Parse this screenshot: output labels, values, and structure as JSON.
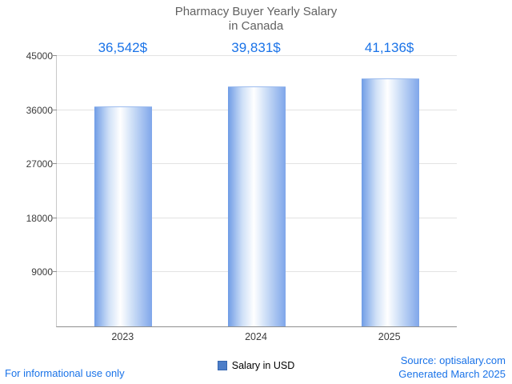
{
  "title": {
    "line1": "Pharmacy Buyer Yearly Salary",
    "line2": "in Canada"
  },
  "chart_data": {
    "type": "bar",
    "title": "Pharmacy Buyer Yearly Salary in Canada",
    "categories": [
      "2023",
      "2024",
      "2025"
    ],
    "series": [
      {
        "name": "Salary in USD",
        "values": [
          36542,
          39831,
          41136
        ]
      }
    ],
    "value_labels": [
      "36,542$",
      "39,831$",
      "41,136$"
    ],
    "ylim": [
      0,
      45000
    ],
    "yticks": [
      9000,
      18000,
      27000,
      36000,
      45000
    ],
    "grid": true,
    "legend_position": "bottom"
  },
  "legend": {
    "label": "Salary in USD"
  },
  "footer": {
    "disclaimer": "For informational use only",
    "source": "Source: optisalary.com",
    "generated": "Generated March 2025"
  },
  "colors": {
    "accent": "#1a73e8",
    "title_text": "#616161",
    "bar_edge": "#6f9ce6",
    "bar_center": "#ffffff",
    "legend_square": "#4d7ec8",
    "gridline": "#e3e3e3",
    "axis": "#8f8f8f"
  }
}
